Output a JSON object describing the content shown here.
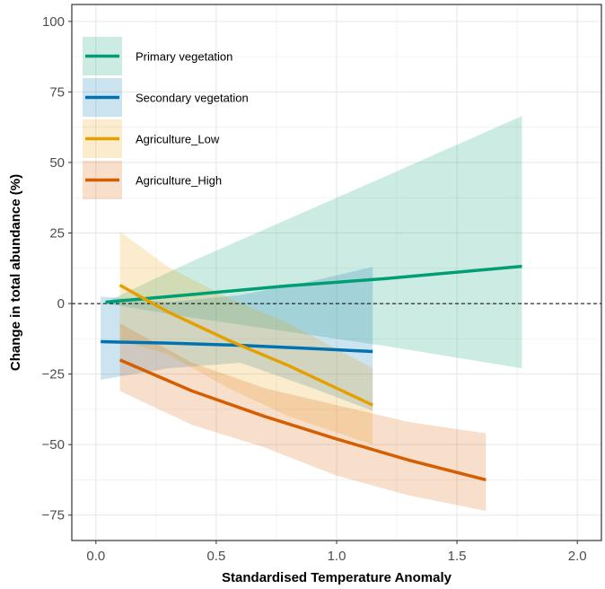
{
  "chart_data": {
    "type": "line",
    "xlabel": "Standardised Temperature Anomaly",
    "ylabel": "Change in total abundance (%)",
    "xlim": [
      -0.1,
      2.1
    ],
    "ylim": [
      -84,
      106
    ],
    "xticks": [
      0.0,
      0.5,
      1.0,
      1.5,
      2.0
    ],
    "xtick_labels": [
      "0.0",
      "0.5",
      "1.0",
      "1.5",
      "2.0"
    ],
    "yticks": [
      -75,
      -50,
      -25,
      0,
      25,
      50,
      75,
      100
    ],
    "ytick_labels": [
      "−75",
      "−50",
      "−25",
      "0",
      "25",
      "50",
      "75",
      "100"
    ],
    "grid": true,
    "reference_line": {
      "y": 0,
      "style": "dashed"
    },
    "legend_position": "top-left",
    "series": [
      {
        "name": "Primary vegetation",
        "color": "#009E73",
        "x": [
          0.04,
          0.4,
          0.8,
          1.2,
          1.77
        ],
        "y": [
          0.5,
          3.2,
          6.3,
          8.8,
          13.2
        ],
        "lower": [
          0.0,
          -5.0,
          -10.0,
          -15.0,
          -23.0
        ],
        "upper": [
          0.5,
          15.0,
          30.0,
          45.0,
          66.5
        ]
      },
      {
        "name": "Secondary vegetation",
        "color": "#0072B2",
        "x": [
          0.02,
          0.3,
          0.6,
          0.9,
          1.15
        ],
        "y": [
          -13.5,
          -14.0,
          -14.8,
          -16.0,
          -17.0
        ],
        "lower": [
          -27.0,
          -23.0,
          -21.0,
          -30.0,
          -38.0
        ],
        "upper": [
          2.5,
          0.5,
          3.0,
          8.0,
          13.0
        ]
      },
      {
        "name": "Agriculture_Low",
        "color": "#E69F00",
        "x": [
          0.1,
          0.3,
          0.55,
          0.8,
          1.15
        ],
        "y": [
          6.5,
          -3.0,
          -13.0,
          -22.0,
          -36.0
        ],
        "lower": [
          -13.0,
          -18.0,
          -30.0,
          -40.0,
          -50.0
        ],
        "upper": [
          25.5,
          13.0,
          2.0,
          -7.0,
          -23.0
        ]
      },
      {
        "name": "Agriculture_High",
        "color": "#D55E00",
        "x": [
          0.1,
          0.4,
          0.7,
          1.0,
          1.3,
          1.62
        ],
        "y": [
          -20.0,
          -31.0,
          -40.0,
          -48.0,
          -55.5,
          -62.5
        ],
        "lower": [
          -31.0,
          -43.0,
          -51.0,
          -61.0,
          -68.0,
          -73.5
        ],
        "upper": [
          -7.0,
          -21.0,
          -30.0,
          -36.0,
          -42.0,
          -46.0
        ]
      }
    ]
  }
}
